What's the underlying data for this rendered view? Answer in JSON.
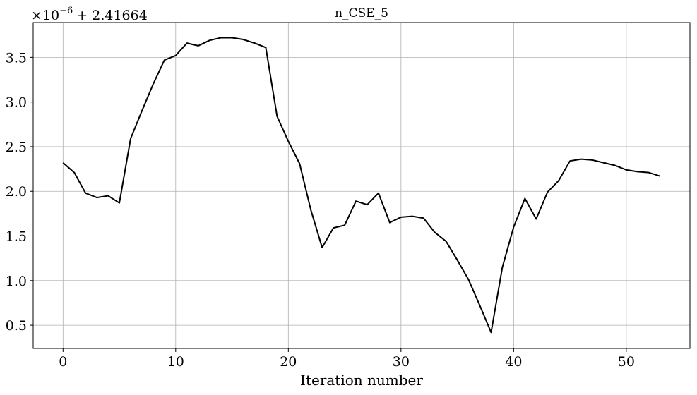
{
  "chart_data": {
    "type": "line",
    "title": "n_CSE_5",
    "xlabel": "Iteration number",
    "ylabel": "",
    "y_offset_label": {
      "multiplier_base": "×10",
      "multiplier_exponent": "−6",
      "offset": "+ 2.41664"
    },
    "xlim": [
      -2.65,
      55.65
    ],
    "ylim": [
      0.24,
      3.89
    ],
    "x_ticks": [
      0,
      10,
      20,
      30,
      40,
      50
    ],
    "x_tick_labels": [
      "0",
      "10",
      "20",
      "30",
      "40",
      "50"
    ],
    "y_ticks": [
      0.5,
      1.0,
      1.5,
      2.0,
      2.5,
      3.0,
      3.5
    ],
    "y_tick_labels": [
      "0.5",
      "1.0",
      "1.5",
      "2.0",
      "2.5",
      "3.0",
      "3.5"
    ],
    "grid": true,
    "series": [
      {
        "color": "#000000",
        "x": [
          0,
          1,
          2,
          3,
          4,
          5,
          6,
          7,
          8,
          9,
          10,
          11,
          12,
          13,
          14,
          15,
          16,
          17,
          18,
          19,
          20,
          21,
          22,
          23,
          24,
          25,
          26,
          27,
          28,
          29,
          30,
          31,
          32,
          33,
          34,
          35,
          36,
          37,
          38,
          39,
          40,
          41,
          42,
          43,
          44,
          45,
          46,
          47,
          48,
          49,
          50,
          51,
          52,
          53
        ],
        "y": [
          2.32,
          2.21,
          1.98,
          1.93,
          1.95,
          1.87,
          2.59,
          2.9,
          3.2,
          3.47,
          3.52,
          3.66,
          3.63,
          3.69,
          3.72,
          3.72,
          3.7,
          3.66,
          3.61,
          2.84,
          2.56,
          2.31,
          1.79,
          1.37,
          1.59,
          1.62,
          1.89,
          1.85,
          1.98,
          1.65,
          1.71,
          1.72,
          1.7,
          1.54,
          1.44,
          1.23,
          1.01,
          0.72,
          0.42,
          1.15,
          1.6,
          1.92,
          1.69,
          1.99,
          2.12,
          2.34,
          2.36,
          2.35,
          2.32,
          2.29,
          2.24,
          2.22,
          2.21,
          2.17
        ]
      }
    ]
  }
}
